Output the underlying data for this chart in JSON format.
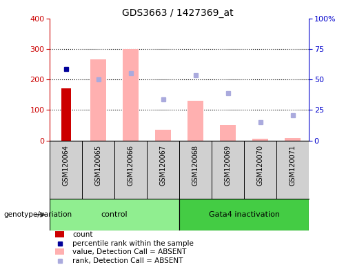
{
  "title": "GDS3663 / 1427369_at",
  "samples": [
    "GSM120064",
    "GSM120065",
    "GSM120066",
    "GSM120067",
    "GSM120068",
    "GSM120069",
    "GSM120070",
    "GSM120071"
  ],
  "count": [
    170,
    null,
    null,
    null,
    null,
    null,
    null,
    null
  ],
  "percentile_rank": [
    58.75,
    null,
    null,
    null,
    null,
    null,
    null,
    null
  ],
  "value_absent": [
    null,
    265,
    300,
    35,
    130,
    52,
    5,
    8
  ],
  "rank_absent": [
    null,
    50.0,
    55.0,
    33.75,
    53.75,
    38.75,
    15.0,
    20.5
  ],
  "left_ylim": [
    0,
    400
  ],
  "right_ylim": [
    0,
    100
  ],
  "left_yticks": [
    0,
    100,
    200,
    300,
    400
  ],
  "right_yticks": [
    0,
    25,
    50,
    75,
    100
  ],
  "right_yticklabels": [
    "0",
    "25",
    "50",
    "75",
    "100%"
  ],
  "left_color": "#cc0000",
  "right_color": "#0000cc",
  "bar_color_count": "#cc0000",
  "bar_color_absent": "#ffb0b0",
  "dot_color_rank": "#000099",
  "dot_color_rank_absent": "#aaaadd",
  "genotype_label": "genotype/variation",
  "ctrl_color": "#90ee90",
  "gata_color": "#44cc44",
  "legend": [
    {
      "label": "count",
      "color": "#cc0000",
      "type": "bar"
    },
    {
      "label": "percentile rank within the sample",
      "color": "#000099",
      "type": "dot"
    },
    {
      "label": "value, Detection Call = ABSENT",
      "color": "#ffb0b0",
      "type": "bar"
    },
    {
      "label": "rank, Detection Call = ABSENT",
      "color": "#aaaadd",
      "type": "dot"
    }
  ]
}
